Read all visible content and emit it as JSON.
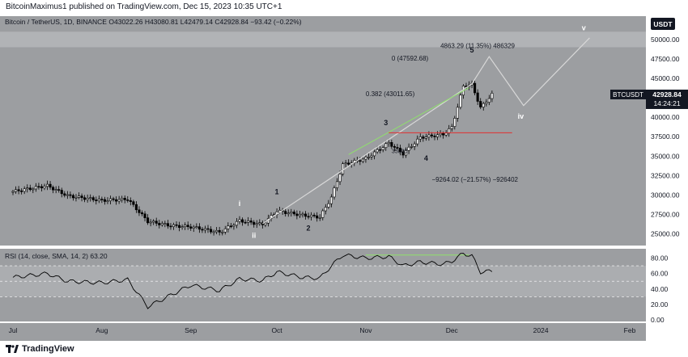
{
  "publisher_line": "BitcoinMaximus1 published on TradingView.com, Dec 15, 2023 10:35 UTC+1",
  "footer_brand": "TradingView",
  "main_legend": {
    "symbol": "Bitcoin / TetherUS, 1D, BINANCE",
    "o_label": "O",
    "o": "43022.26",
    "h_label": "H",
    "h": "43080.81",
    "l_label": "L",
    "l": "42479.14",
    "c_label": "C",
    "c": "42928.84",
    "change": "−93.42 (−0.22%)"
  },
  "rsi_legend": {
    "label": "RSI (14, close, SMA, 14, 2)",
    "value": "63.20"
  },
  "currency_badge": "USDT",
  "price_tag": {
    "symbol": "BTCUSDT",
    "price": "42928.84",
    "countdown": "14:24:21"
  },
  "colors": {
    "panel_bg": "#9c9ea1",
    "band": "#b6b8bb",
    "candle": "#ffffff",
    "candle_outline": "#000000",
    "projection": "#d8d8d8",
    "green_trend": "#8fe06c",
    "red_level": "#e03030",
    "rsi_line": "#000000"
  },
  "chart_data": [
    {
      "type": "candlestick",
      "title": "Bitcoin / TetherUS, 1D, BINANCE",
      "x_ticks": [
        "Jul",
        "Aug",
        "Sep",
        "Oct",
        "Nov",
        "Dec",
        "2024",
        "Feb"
      ],
      "y_ticks": [
        "50000.00",
        "47500.00",
        "45000.00",
        "42500.00",
        "40000.00",
        "37500.00",
        "35000.00",
        "32500.00",
        "30000.00",
        "27500.00",
        "25000.00"
      ],
      "ylim": [
        23500,
        53000
      ],
      "grid": false,
      "approx_path": [
        [
          "Jul 1",
          30450
        ],
        [
          "Jul 13",
          31200
        ],
        [
          "Jul 20",
          29900
        ],
        [
          "Aug 1",
          29300
        ],
        [
          "Aug 10",
          29450
        ],
        [
          "Aug 17",
          26600
        ],
        [
          "Aug 25",
          26050
        ],
        [
          "Sep 1",
          25900
        ],
        [
          "Sep 11",
          25200
        ],
        [
          "Sep 18",
          26700
        ],
        [
          "Sep 26",
          26200
        ],
        [
          "Oct 1",
          27950
        ],
        [
          "Oct 10",
          27400
        ],
        [
          "Oct 16",
          27150
        ],
        [
          "Oct 20",
          29700
        ],
        [
          "Oct 24",
          33900
        ],
        [
          "Nov 1",
          34700
        ],
        [
          "Nov 9",
          36700
        ],
        [
          "Nov 14",
          35300
        ],
        [
          "Nov 20",
          37400
        ],
        [
          "Nov 28",
          37800
        ],
        [
          "Dec 1",
          38700
        ],
        [
          "Dec 5",
          44000
        ],
        [
          "Dec 8",
          44200
        ],
        [
          "Dec 11",
          41200
        ],
        [
          "Dec 15",
          42929
        ]
      ],
      "annotations": {
        "fib_0": "0 (47592.68)",
        "fib_0382": "0.382 (43011.65)",
        "measure_up": "4863.29 (11.35%) 486329",
        "measure_down": "−9264.02 (−21.57%) −926402",
        "interval_label": "35000",
        "wave_labels": [
          "i",
          "ii",
          "1",
          "2",
          "3",
          "4",
          "5",
          "iv",
          "v"
        ],
        "support_level": 38000
      }
    },
    {
      "type": "line",
      "title": "RSI (14, close, SMA, 14, 2)",
      "y_ticks": [
        "80.00",
        "60.00",
        "40.00",
        "20.00",
        "0.00"
      ],
      "ylim": [
        0,
        90
      ],
      "bands": {
        "overbought": 70,
        "middle": 50,
        "oversold": 30
      },
      "approx_path": [
        [
          "Jul 1",
          55
        ],
        [
          "Jul 13",
          60
        ],
        [
          "Jul 20",
          50
        ],
        [
          "Aug 1",
          48
        ],
        [
          "Aug 10",
          52
        ],
        [
          "Aug 17",
          17
        ],
        [
          "Aug 25",
          32
        ],
        [
          "Sep 1",
          45
        ],
        [
          "Sep 11",
          38
        ],
        [
          "Sep 18",
          53
        ],
        [
          "Sep 26",
          51
        ],
        [
          "Oct 1",
          62
        ],
        [
          "Oct 10",
          55
        ],
        [
          "Oct 16",
          54
        ],
        [
          "Oct 20",
          70
        ],
        [
          "Oct 24",
          84
        ],
        [
          "Nov 1",
          80
        ],
        [
          "Nov 9",
          82
        ],
        [
          "Nov 14",
          70
        ],
        [
          "Nov 20",
          75
        ],
        [
          "Nov 28",
          72
        ],
        [
          "Dec 1",
          76
        ],
        [
          "Dec 5",
          86
        ],
        [
          "Dec 8",
          83
        ],
        [
          "Dec 11",
          62
        ],
        [
          "Dec 15",
          63.2
        ]
      ]
    }
  ]
}
